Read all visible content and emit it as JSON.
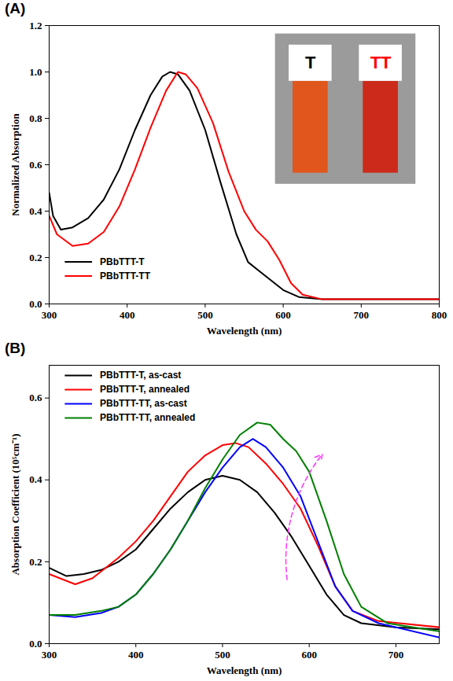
{
  "chart_data": [
    {
      "type": "line",
      "title": "(A)",
      "x_label": "Wavelength (nm)",
      "y_label": "Normalized Absorption",
      "xlim": [
        300,
        800
      ],
      "ylim": [
        0,
        1.2
      ],
      "xticks": [
        300,
        400,
        500,
        600,
        700,
        800
      ],
      "yticks": [
        {
          "value": 0,
          "label": "0.0"
        },
        {
          "value": 0.2,
          "label": "0.2"
        },
        {
          "value": 0.4,
          "label": "0.4"
        },
        {
          "value": 0.6,
          "label": "0.6"
        },
        {
          "value": 0.8,
          "label": "0.8"
        },
        {
          "value": 1.0,
          "label": "1.0"
        },
        {
          "value": 1.2,
          "label": "1.2"
        }
      ],
      "legend": "lower left",
      "annotations": [
        {
          "text": "T",
          "color": "#000000"
        },
        {
          "text": "TT",
          "color": "#ff0000"
        }
      ],
      "series": [
        {
          "name": "PBbTTT-T",
          "color": "#000000",
          "x": [
            300,
            305,
            315,
            330,
            350,
            370,
            390,
            410,
            430,
            445,
            455,
            465,
            480,
            500,
            520,
            540,
            555,
            570,
            585,
            600,
            620,
            650,
            700,
            800
          ],
          "values": [
            0.48,
            0.38,
            0.32,
            0.33,
            0.37,
            0.45,
            0.58,
            0.75,
            0.9,
            0.98,
            1.0,
            0.99,
            0.92,
            0.75,
            0.52,
            0.3,
            0.18,
            0.14,
            0.1,
            0.06,
            0.03,
            0.02,
            0.02,
            0.02
          ]
        },
        {
          "name": "PBbTTT-TT",
          "color": "#ff0000",
          "x": [
            300,
            310,
            330,
            350,
            370,
            390,
            410,
            430,
            450,
            465,
            475,
            490,
            510,
            530,
            550,
            565,
            580,
            595,
            610,
            625,
            650,
            700,
            800
          ],
          "values": [
            0.38,
            0.3,
            0.25,
            0.26,
            0.31,
            0.42,
            0.58,
            0.76,
            0.92,
            1.0,
            0.99,
            0.93,
            0.78,
            0.57,
            0.4,
            0.32,
            0.27,
            0.19,
            0.09,
            0.04,
            0.02,
            0.02,
            0.02
          ]
        }
      ]
    },
    {
      "type": "line",
      "title": "(B)",
      "x_label": "Wavelength (nm)",
      "y_label": "Absorption Coefficient (10⁵cm⁻¹)",
      "xlim": [
        300,
        750
      ],
      "ylim": [
        0,
        0.68
      ],
      "xticks": [
        300,
        400,
        500,
        600,
        700
      ],
      "yticks": [
        {
          "value": 0,
          "label": "0.0"
        },
        {
          "value": 0.2,
          "label": "0.2"
        },
        {
          "value": 0.4,
          "label": "0.4"
        },
        {
          "value": 0.6,
          "label": "0.6"
        }
      ],
      "legend": "upper left",
      "series": [
        {
          "name": "PBbTTT-T, as-cast",
          "color": "#000000",
          "x": [
            300,
            320,
            340,
            360,
            380,
            400,
            420,
            440,
            460,
            480,
            500,
            520,
            540,
            560,
            580,
            600,
            620,
            640,
            660,
            700,
            750
          ],
          "values": [
            0.185,
            0.165,
            0.17,
            0.18,
            0.2,
            0.23,
            0.28,
            0.33,
            0.37,
            0.4,
            0.41,
            0.4,
            0.37,
            0.32,
            0.26,
            0.19,
            0.12,
            0.07,
            0.05,
            0.04,
            0.035
          ]
        },
        {
          "name": "PBbTTT-T, annealed",
          "color": "#ff0000",
          "x": [
            300,
            330,
            350,
            380,
            400,
            420,
            440,
            460,
            480,
            500,
            515,
            530,
            550,
            570,
            590,
            610,
            630,
            650,
            680,
            750
          ],
          "values": [
            0.17,
            0.145,
            0.16,
            0.21,
            0.25,
            0.3,
            0.36,
            0.42,
            0.46,
            0.485,
            0.49,
            0.48,
            0.44,
            0.39,
            0.33,
            0.24,
            0.14,
            0.08,
            0.055,
            0.04
          ]
        },
        {
          "name": "PBbTTT-TT, as-cast",
          "color": "#0000ff",
          "x": [
            300,
            330,
            360,
            380,
            400,
            420,
            440,
            460,
            480,
            500,
            520,
            535,
            550,
            570,
            590,
            610,
            630,
            650,
            680,
            750
          ],
          "values": [
            0.07,
            0.065,
            0.075,
            0.09,
            0.12,
            0.17,
            0.23,
            0.3,
            0.37,
            0.43,
            0.48,
            0.5,
            0.48,
            0.43,
            0.36,
            0.25,
            0.14,
            0.08,
            0.05,
            0.015
          ]
        },
        {
          "name": "PBbTTT-TT, annealed",
          "color": "#008000",
          "x": [
            300,
            330,
            360,
            380,
            400,
            420,
            440,
            460,
            480,
            500,
            520,
            540,
            555,
            570,
            585,
            600,
            620,
            640,
            660,
            690,
            750
          ],
          "values": [
            0.07,
            0.07,
            0.08,
            0.09,
            0.12,
            0.17,
            0.23,
            0.3,
            0.38,
            0.45,
            0.51,
            0.54,
            0.535,
            0.5,
            0.47,
            0.42,
            0.3,
            0.17,
            0.09,
            0.05,
            0.03
          ]
        }
      ]
    }
  ]
}
